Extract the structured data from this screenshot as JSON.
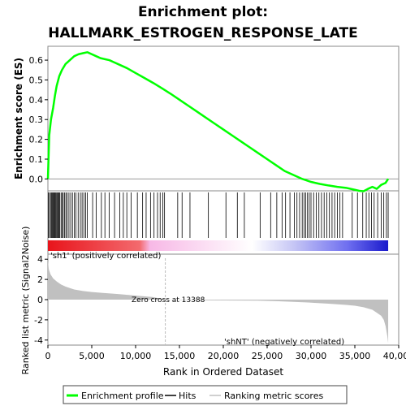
{
  "chart_data": {
    "type": "line",
    "title_line1": "Enrichment plot:",
    "title_line2": "HALLMARK_ESTROGEN_RESPONSE_LATE",
    "es_panel": {
      "ylabel": "Enrichment score (ES)",
      "ylim": [
        -0.06,
        0.67
      ],
      "yticks": [
        "0.0",
        "0.1",
        "0.2",
        "0.3",
        "0.4",
        "0.5",
        "0.6"
      ],
      "yticks_values": [
        0.0,
        0.1,
        0.2,
        0.3,
        0.4,
        0.5,
        0.6
      ],
      "series": [
        {
          "name": "Enrichment profile",
          "color": "#00ff00",
          "x": [
            0,
            150,
            350,
            600,
            800,
            1000,
            1300,
            1600,
            2000,
            2500,
            3000,
            3500,
            4000,
            4500,
            5000,
            5500,
            6000,
            6500,
            7000,
            7500,
            8000,
            9000,
            10000,
            11000,
            12000,
            13000,
            14000,
            15000,
            16000,
            17000,
            18000,
            19000,
            20000,
            21000,
            22000,
            23000,
            24000,
            25000,
            26000,
            27000,
            28000,
            29000,
            30000,
            31000,
            32000,
            33000,
            34000,
            35000,
            35500,
            36000,
            36500,
            37000,
            37500,
            38000,
            38500,
            38800
          ],
          "y": [
            0.0,
            0.22,
            0.3,
            0.36,
            0.42,
            0.47,
            0.52,
            0.55,
            0.58,
            0.6,
            0.62,
            0.63,
            0.635,
            0.64,
            0.63,
            0.62,
            0.61,
            0.605,
            0.6,
            0.59,
            0.58,
            0.56,
            0.535,
            0.51,
            0.485,
            0.458,
            0.43,
            0.4,
            0.37,
            0.34,
            0.31,
            0.28,
            0.25,
            0.22,
            0.19,
            0.16,
            0.13,
            0.1,
            0.07,
            0.04,
            0.02,
            0.0,
            -0.015,
            -0.025,
            -0.033,
            -0.04,
            -0.045,
            -0.055,
            -0.06,
            -0.062,
            -0.05,
            -0.04,
            -0.05,
            -0.03,
            -0.02,
            0.0
          ]
        }
      ]
    },
    "hits_panel": {
      "hits_color": "#000000",
      "hit_positions": [
        50,
        180,
        300,
        420,
        520,
        600,
        700,
        780,
        860,
        950,
        1050,
        1150,
        1250,
        1350,
        1500,
        1620,
        1750,
        1900,
        2050,
        2200,
        2400,
        2600,
        2800,
        3000,
        3200,
        3450,
        3700,
        3900,
        4100,
        4300,
        4500,
        5100,
        5500,
        6100,
        6500,
        7000,
        7600,
        8200,
        8600,
        9000,
        9500,
        10200,
        10800,
        11200,
        11700,
        12100,
        12500,
        12800,
        13100,
        13300,
        14800,
        15300,
        16200,
        18300,
        20300,
        21600,
        22400,
        24200,
        25400,
        26100,
        26700,
        27100,
        27600,
        28100,
        28400,
        28700,
        29000,
        29200,
        29400,
        29600,
        29800,
        30000,
        30300,
        30600,
        30900,
        31200,
        31500,
        31800,
        32100,
        32400,
        32700,
        33000,
        33300,
        33600,
        34700,
        35300,
        35900,
        36300,
        36600,
        36900,
        37200,
        37600,
        38000,
        38300,
        38600,
        38800
      ],
      "colorbar_labels": {
        "positive": "'sh1' (positively correlated)",
        "negative": "'shNT' (negatively correlated)"
      },
      "positive_label_color": "#ff0000",
      "negative_label_color": "#0000ff"
    },
    "metric_panel": {
      "ylabel": "Ranked list metric (Signal2Noise)",
      "ylim": [
        -4.5,
        4.5
      ],
      "yticks": [
        "4",
        "2",
        "0",
        "-2",
        "-4"
      ],
      "yticks_values": [
        4,
        2,
        0,
        -2,
        -4
      ],
      "fill_color": "#c0c0c0",
      "x": [
        0,
        100,
        300,
        600,
        1000,
        1500,
        2000,
        2500,
        3000,
        4000,
        5000,
        6000,
        8000,
        10000,
        12000,
        13388,
        16000,
        20000,
        24000,
        26000,
        28000,
        30000,
        32000,
        34000,
        35000,
        36000,
        37000,
        37500,
        38000,
        38300,
        38500,
        38700,
        38800
      ],
      "y": [
        3.9,
        3.0,
        2.5,
        2.1,
        1.8,
        1.5,
        1.3,
        1.15,
        1.0,
        0.85,
        0.75,
        0.68,
        0.55,
        0.4,
        0.25,
        0.0,
        -0.05,
        -0.08,
        -0.1,
        -0.15,
        -0.22,
        -0.3,
        -0.4,
        -0.52,
        -0.6,
        -0.75,
        -1.0,
        -1.3,
        -1.6,
        -2.0,
        -2.6,
        -3.6,
        -4.3
      ],
      "zero_cross_text": "Zero cross at 13388",
      "zero_cross_rank": 13388
    },
    "xaxis": {
      "label": "Rank in Ordered Dataset",
      "xlim": [
        0,
        40000
      ],
      "ticks": [
        "0",
        "5,000",
        "10,000",
        "15,000",
        "20,000",
        "25,000",
        "30,000",
        "35,000",
        "40,000"
      ],
      "ticks_values": [
        0,
        5000,
        10000,
        15000,
        20000,
        25000,
        30000,
        35000,
        40000
      ]
    },
    "legend": {
      "placement": "bottom",
      "items": [
        {
          "label": "Enrichment profile",
          "color": "#00ff00"
        },
        {
          "label": "Hits",
          "color": "#000000"
        },
        {
          "label": "Ranking metric scores",
          "color": "#c0c0c0"
        }
      ]
    }
  }
}
